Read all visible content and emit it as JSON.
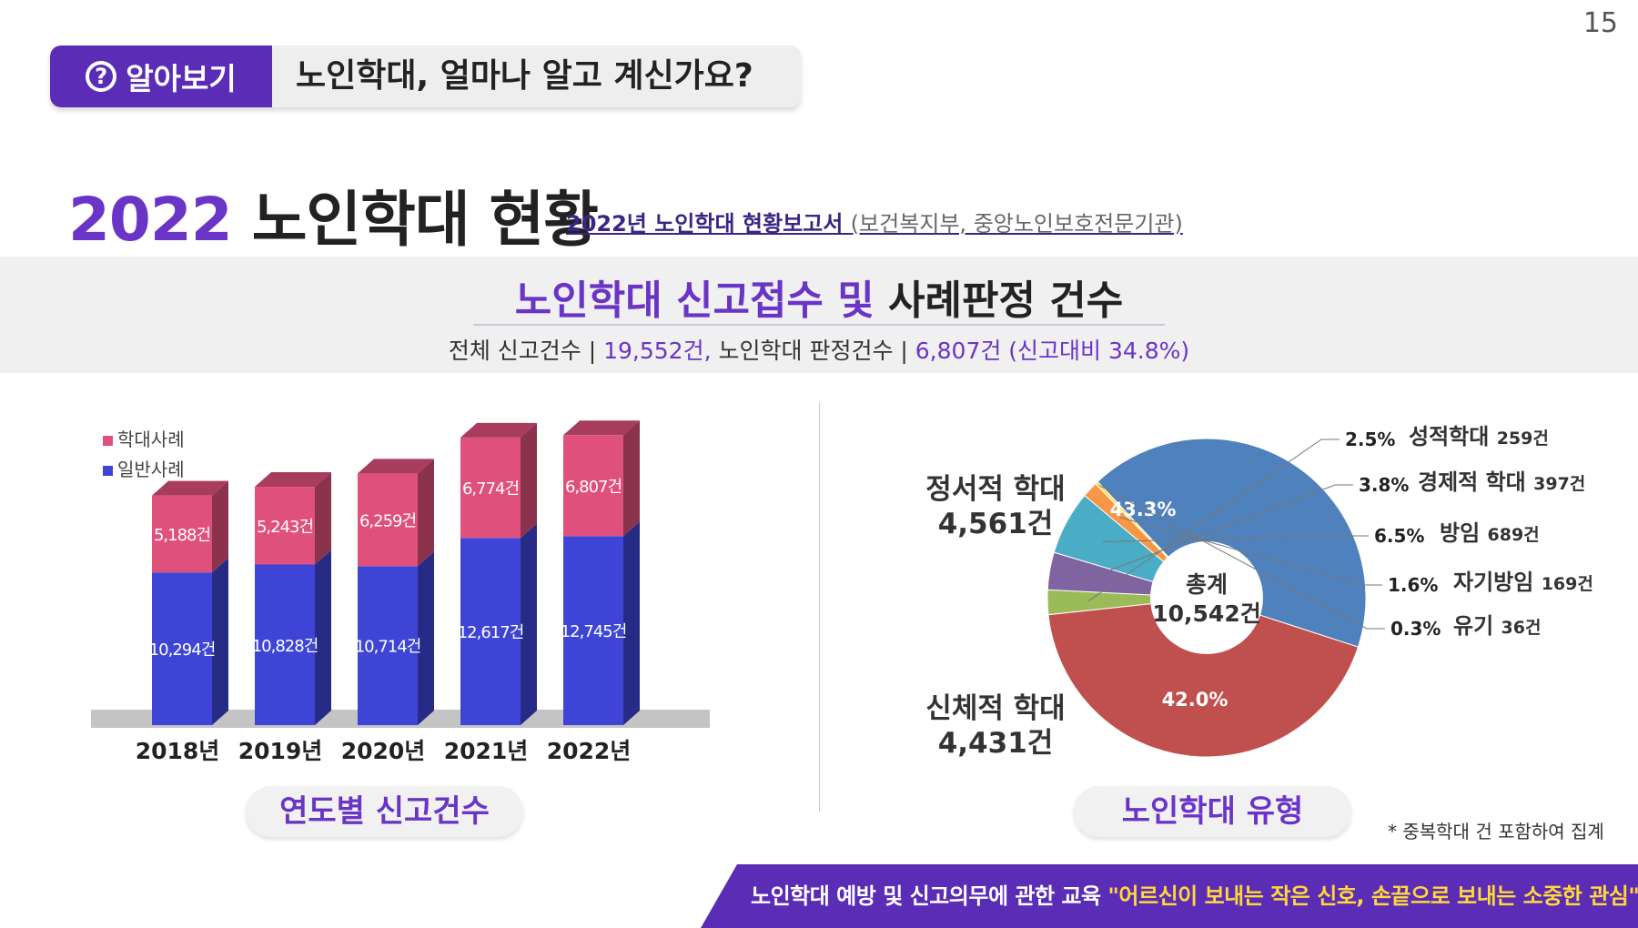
{
  "page_number": "15",
  "header": {
    "tag_icon": "?",
    "tag_label": "알아보기",
    "question": "노인학대, 얼마나 알고 계신가요?"
  },
  "title": {
    "year": "2022",
    "text": "노인학대 현황",
    "source_main": "2022년 노인학대 현황보고서",
    "source_org": "(보건복지부, 중앙노인보호전문기관)"
  },
  "section": {
    "title_purple": "노인학대 신고접수 및",
    "title_dark": "사례판정 건수",
    "summary_prefix": "전체 신고건수 |",
    "summary_total": "19,552건,",
    "summary_mid": "노인학대 판정건수 |",
    "summary_judged": "6,807건 (신고대비 34.8%)"
  },
  "chart_data": [
    {
      "type": "bar",
      "stacked": true,
      "categories": [
        "2018년",
        "2019년",
        "2020년",
        "2021년",
        "2022년"
      ],
      "series": [
        {
          "name": "일반사례",
          "values": [
            10294,
            10828,
            10714,
            12617,
            12745
          ],
          "labels": [
            "10,294건",
            "10,828건",
            "10,714건",
            "12,617건",
            "12,745건"
          ],
          "color": "#3e45d6"
        },
        {
          "name": "학대사례",
          "values": [
            5188,
            5243,
            6259,
            6774,
            6807
          ],
          "labels": [
            "5,188건",
            "5,243건",
            "6,259건",
            "6,774건",
            "6,807건"
          ],
          "color": "#e0507c"
        }
      ],
      "legend_position": "top-left",
      "ylim": [
        0,
        20000
      ],
      "caption": "연도별 신고건수"
    },
    {
      "type": "pie",
      "donut": true,
      "center_label": "총계",
      "center_value": "10,542건",
      "slices": [
        {
          "name": "정서적 학대",
          "count": "4,561건",
          "percent": 43.3,
          "percent_label": "43.3%",
          "color": "#c0504d"
        },
        {
          "name": "성적학대",
          "count": "259건",
          "percent": 2.5,
          "percent_label": "2.5%",
          "color": "#9bbb59"
        },
        {
          "name": "경제적 학대",
          "count": "397건",
          "percent": 3.8,
          "percent_label": "3.8%",
          "color": "#8064a2"
        },
        {
          "name": "방임",
          "count": "689건",
          "percent": 6.5,
          "percent_label": "6.5%",
          "color": "#4bacc6"
        },
        {
          "name": "자기방임",
          "count": "169건",
          "percent": 1.6,
          "percent_label": "1.6%",
          "color": "#f79646"
        },
        {
          "name": "유기",
          "count": "36건",
          "percent": 0.3,
          "percent_label": "0.3%",
          "color": "#ffe033"
        },
        {
          "name": "신체적 학대",
          "count": "4,431건",
          "percent": 42.0,
          "percent_label": "42.0%",
          "color": "#4f81bd"
        }
      ],
      "caption": "노인학대 유형"
    }
  ],
  "note": "* 중복학대 건 포함하여 집계",
  "footer": {
    "text": "노인학대 예방 및 신고의무에 관한 교육",
    "quote": "\"어르신이 보내는 작은 신호, 손끝으로 보내는 소중한 관심\""
  }
}
